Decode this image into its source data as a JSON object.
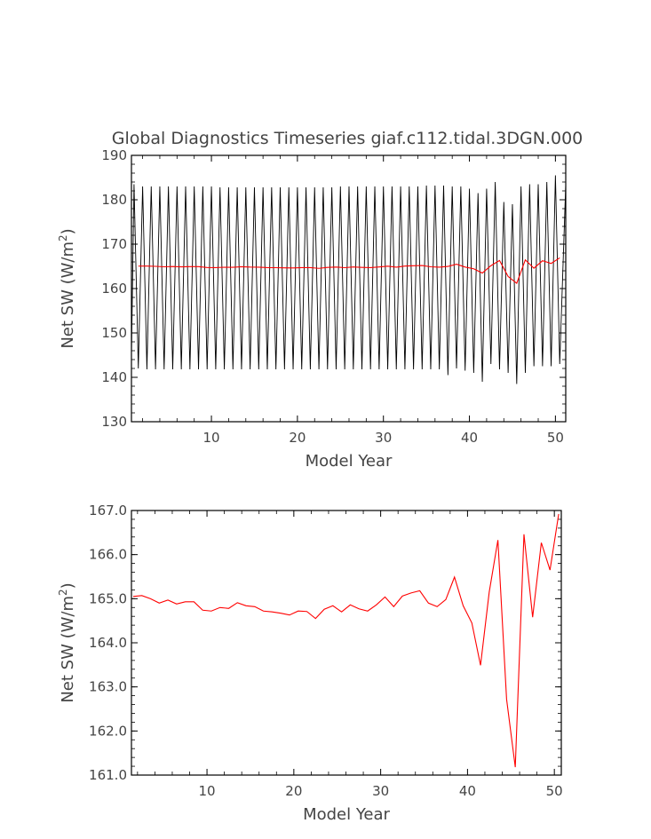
{
  "chart_data": [
    {
      "type": "line",
      "title": "Global Diagnostics Timeseries giaf.c112.tidal.3DGN.000",
      "xlabel": "Model Year",
      "ylabel": "Net SW (W/m",
      "ylabel_sup": "2",
      "ylabel_close": ")",
      "xlim": [
        0.7,
        51.2
      ],
      "ylim": [
        130,
        190
      ],
      "xticks": [
        10,
        20,
        30,
        40,
        50
      ],
      "yticks": [
        130,
        140,
        150,
        160,
        170,
        180,
        190
      ],
      "ytick_labels": [
        "130",
        "140",
        "150",
        "160",
        "170",
        "180",
        "190"
      ],
      "series": [
        {
          "color": "#000000",
          "kind": "monthly",
          "annual_peaks": [
            183.5,
            183,
            183,
            183,
            183,
            183,
            183,
            183,
            183,
            183,
            182.8,
            182.8,
            182.8,
            182.8,
            182.8,
            182.8,
            182.8,
            182.8,
            182.8,
            182.8,
            182.8,
            182.8,
            182.8,
            182.8,
            183,
            183,
            183,
            183,
            183,
            183,
            183,
            183,
            183,
            183,
            183.2,
            183.2,
            183.2,
            183,
            183,
            182.5,
            181.5,
            182.5,
            184,
            179.5,
            179,
            183,
            183.5,
            183.5,
            184,
            185.5
          ],
          "annual_troughs": [
            142,
            141.8,
            141.8,
            141.8,
            141.8,
            141.8,
            141.8,
            141.8,
            141.8,
            141.8,
            141.8,
            141.8,
            141.8,
            141.8,
            141.8,
            141.8,
            141.8,
            141.8,
            141.8,
            141.8,
            141.8,
            141.8,
            141.8,
            141.8,
            141.8,
            141.8,
            141.8,
            141.8,
            141.8,
            141.8,
            141.8,
            141.8,
            141.8,
            141.8,
            141.8,
            141.8,
            140.5,
            142,
            141.5,
            141,
            139,
            143,
            141.8,
            141,
            138.5,
            141,
            142.5,
            142.5,
            142.5,
            143
          ]
        },
        {
          "color": "#ff0000",
          "kind": "annual",
          "values": [
            165.05,
            165.07,
            165.0,
            164.9,
            164.97,
            164.88,
            164.93,
            164.93,
            164.74,
            164.72,
            164.8,
            164.78,
            164.91,
            164.84,
            164.82,
            164.72,
            164.7,
            164.67,
            164.63,
            164.72,
            164.71,
            164.55,
            164.76,
            164.84,
            164.7,
            164.86,
            164.77,
            164.72,
            164.86,
            165.04,
            164.82,
            165.06,
            165.13,
            165.18,
            164.9,
            164.82,
            164.98,
            165.49,
            164.84,
            164.45,
            163.49,
            165.15,
            166.33,
            162.72,
            161.18,
            166.46,
            164.58,
            166.27,
            165.65,
            166.92
          ]
        }
      ]
    },
    {
      "type": "line",
      "title": "",
      "xlabel": "Model Year",
      "ylabel": "Net SW (W/m",
      "ylabel_sup": "2",
      "ylabel_close": ")",
      "xlim": [
        1.3,
        50.8
      ],
      "ylim": [
        161.0,
        167.0
      ],
      "xticks": [
        10,
        20,
        30,
        40,
        50
      ],
      "yticks": [
        161,
        162,
        163,
        164,
        165,
        166,
        167
      ],
      "ytick_labels": [
        "161.0",
        "162.0",
        "163.0",
        "164.0",
        "165.0",
        "166.0",
        "167.0"
      ],
      "series": [
        {
          "color": "#ff0000",
          "kind": "annual",
          "x": [
            1.5,
            2.5,
            3.5,
            4.5,
            5.5,
            6.5,
            7.5,
            8.5,
            9.5,
            10.5,
            11.5,
            12.5,
            13.5,
            14.5,
            15.5,
            16.5,
            17.5,
            18.5,
            19.5,
            20.5,
            21.5,
            22.5,
            23.5,
            24.5,
            25.5,
            26.5,
            27.5,
            28.5,
            29.5,
            30.5,
            31.5,
            32.5,
            33.5,
            34.5,
            35.5,
            36.5,
            37.5,
            38.5,
            39.5,
            40.5,
            41.5,
            42.5,
            43.5,
            44.5,
            45.5,
            46.5,
            47.5,
            48.5,
            49.5,
            50.5
          ],
          "values": [
            165.05,
            165.07,
            165.0,
            164.9,
            164.97,
            164.88,
            164.93,
            164.93,
            164.74,
            164.72,
            164.8,
            164.78,
            164.91,
            164.84,
            164.82,
            164.72,
            164.7,
            164.67,
            164.63,
            164.72,
            164.71,
            164.55,
            164.76,
            164.84,
            164.7,
            164.86,
            164.77,
            164.72,
            164.86,
            165.04,
            164.82,
            165.06,
            165.13,
            165.18,
            164.9,
            164.82,
            164.98,
            165.49,
            164.84,
            164.45,
            163.49,
            165.15,
            166.33,
            162.72,
            161.18,
            166.46,
            164.58,
            166.27,
            165.65,
            166.92
          ]
        }
      ]
    }
  ]
}
